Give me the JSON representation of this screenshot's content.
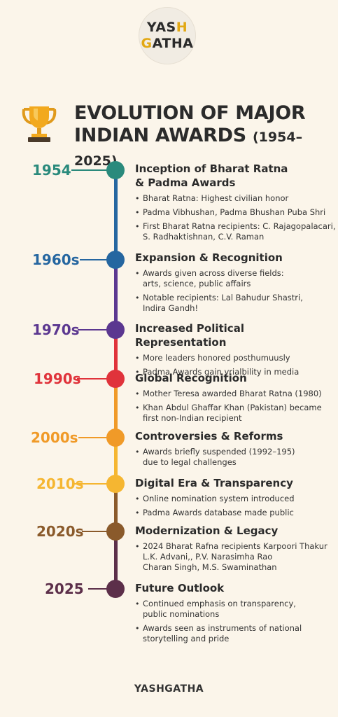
{
  "logo": {
    "line1_a": "YAS",
    "line1_b": "H",
    "line2_a": "G",
    "line2_b": "ATHA"
  },
  "header": {
    "title_line1": "EVOLUTION OF MAJOR",
    "title_line2": "INDIAN AWARDS",
    "title_years": "(1954–2025)",
    "trophy_icon": "trophy-icon"
  },
  "colors": {
    "teal": "#2a8a7c",
    "blue": "#2566a0",
    "purple": "#5b3790",
    "red": "#e0333b",
    "orange": "#f09a28",
    "amber": "#f5b631",
    "brown": "#8a5a2b",
    "plum": "#5c2f4a"
  },
  "timeline": [
    {
      "year": "1954",
      "color": "#2a8a7c",
      "title": "Inception of Bharat Ratna\n& Padma Awards",
      "bullets": [
        "Bharat Ratna: Highest civilian honor",
        "Padma Vibhushan, Padma Bhushan Puba Shri",
        "First Bharat Ratna recipients: C. Rajagopalacari,\nS. Radhaktishnan, C.V. Raman"
      ]
    },
    {
      "year": "1960s",
      "color": "#2566a0",
      "title": "Expansion & Recognition",
      "bullets": [
        "Awards given across diverse fields:\narts, science, public affairs",
        "Notable recipients: Lal Bahudur Shastri,\nIndira Gandh!"
      ]
    },
    {
      "year": "1970s",
      "color": "#5b3790",
      "title": "Increased Political Representation",
      "bullets": [
        "More leaders honored posthumuusly",
        "Padma Awards gain vrialbility in media"
      ]
    },
    {
      "year": "1990s",
      "color": "#e0333b",
      "title": "Global Recognition",
      "bullets": [
        "Mother Teresa awarded Bharat Ratna (1980)",
        "Khan Abdul Ghaffar Khan (Pakistan) became\nfirst non-Indian recipient"
      ]
    },
    {
      "year": "2000s",
      "color": "#f09a28",
      "title": "Controversies & Reforms",
      "bullets": [
        "Awards briefly suspended (1992–195)\ndue to legal challenges"
      ]
    },
    {
      "year": "2010s",
      "color": "#f5b631",
      "title": "Digital Era & Transparency",
      "bullets": [
        "Online nomination system introduced",
        "Padma Awards database made public"
      ]
    },
    {
      "year": "2020s",
      "color": "#8a5a2b",
      "title": "Modernization & Legacy",
      "bullets": [
        "2024 Bharat Rafna recipients  Karpoori Thakur\nL.K. Advani,, P.V. Narasimha Rao\nCharan Singh, M.S. Swaminathan"
      ]
    },
    {
      "year": "2025",
      "color": "#5c2f4a",
      "title": "Future Outlook",
      "bullets": [
        "Continued emphasis on transparency,\npublic nominations",
        "Awards seen as instruments of national\nstorytelling and pride"
      ]
    }
  ],
  "footer": {
    "brand": "YASHGATHA"
  }
}
